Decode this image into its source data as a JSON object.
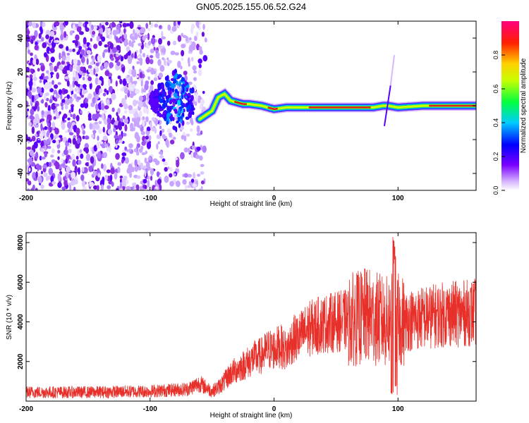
{
  "figure_title": "GN05.2025.155.06.52.G24",
  "chart_data": [
    {
      "type": "heatmap",
      "title": "",
      "xlabel": "Height of straight line (km)",
      "ylabel": "Frequency (Hz)",
      "xlim": [
        -200,
        163
      ],
      "ylim": [
        -50,
        50
      ],
      "xticks": [
        "-200",
        "-100",
        "0",
        "100"
      ],
      "xtick_values": [
        -200,
        -100,
        0,
        100
      ],
      "yticks": [
        "-40",
        "-20",
        "0",
        "20",
        "40"
      ],
      "ytick_values": [
        -40,
        -20,
        0,
        20,
        40
      ],
      "colorbar": {
        "label": "Normalized spectral amplitude",
        "range": [
          0,
          1
        ],
        "ticks": [
          "0.0",
          "0.2",
          "0.4",
          "0.6",
          "0.8"
        ],
        "tick_values": [
          0,
          0.2,
          0.4,
          0.6,
          0.8
        ],
        "colormap": "rainbow (white-violet at 0, blue, cyan, green, yellow, red, magenta at 1)"
      },
      "ridge": {
        "description": "dominant frequency track (Hz) vs height (km)",
        "x": [
          -60,
          -50,
          -45,
          -40,
          -35,
          -30,
          -25,
          -20,
          -10,
          0,
          10,
          30,
          50,
          70,
          80,
          88,
          92,
          100,
          120,
          140,
          163
        ],
        "y": [
          -8,
          -3,
          5,
          7,
          3,
          2,
          1,
          1,
          0,
          -2,
          -1,
          -1,
          -1,
          -1,
          -1,
          0,
          0,
          -1,
          0,
          0,
          0
        ]
      },
      "noise_region_x": [
        -200,
        -55
      ]
    },
    {
      "type": "line",
      "title": "",
      "xlabel": "Height of straight line (km)",
      "ylabel": "SNR (10 * v/v)",
      "xlim": [
        -200,
        163
      ],
      "ylim": [
        0,
        8500
      ],
      "xticks": [
        "-200",
        "-100",
        "0",
        "100"
      ],
      "xtick_values": [
        -200,
        -100,
        0,
        100
      ],
      "yticks": [
        "2000",
        "4000",
        "6000",
        "8000"
      ],
      "ytick_values": [
        2000,
        4000,
        6000,
        8000
      ],
      "series": [
        {
          "color": "#e8302a",
          "description": "approximate mean SNR envelope",
          "x": [
            -200,
            -150,
            -100,
            -70,
            -60,
            -50,
            -45,
            -40,
            -35,
            -30,
            -25,
            -20,
            -15,
            -10,
            -5,
            0,
            5,
            10,
            15,
            20,
            25,
            30,
            40,
            50,
            60,
            70,
            75,
            80,
            85,
            90,
            95,
            98,
            100,
            105,
            110,
            120,
            130,
            140,
            150,
            163
          ],
          "y": [
            450,
            450,
            500,
            600,
            900,
            500,
            700,
            1000,
            1400,
            1600,
            1800,
            2000,
            2200,
            2300,
            2600,
            2600,
            2800,
            2500,
            3100,
            3200,
            3500,
            3700,
            3900,
            4000,
            4100,
            4200,
            4300,
            4200,
            4100,
            4000,
            4100,
            4200,
            4100,
            4000,
            4100,
            4200,
            4300,
            4400,
            4400,
            4500
          ]
        }
      ],
      "peak": {
        "x": 97,
        "y": 8400
      }
    }
  ],
  "colors": {
    "snr_line": "#e8302a",
    "ridge_peak": "#d81e1e",
    "noise_violet": "#8a2be2"
  }
}
